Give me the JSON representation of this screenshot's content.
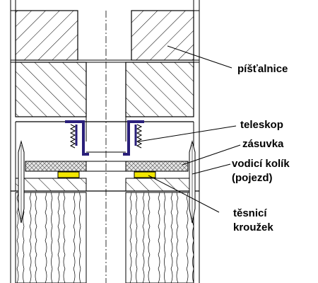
{
  "labels": {
    "pistalnice": "píšťalnice",
    "teleskop": "teleskop",
    "zasuvka": "zásuvka",
    "vodici_kolik_1": "vodicí kolík",
    "vodici_kolik_2": "(pojezd)",
    "tesnici_1": "těsnicí",
    "tesnici_2": "kroužek"
  },
  "colors": {
    "outline": "#000000",
    "telescope": "#2a1f7a",
    "seal": "#f2e600",
    "drawer_fill": "#d9d9d9"
  }
}
